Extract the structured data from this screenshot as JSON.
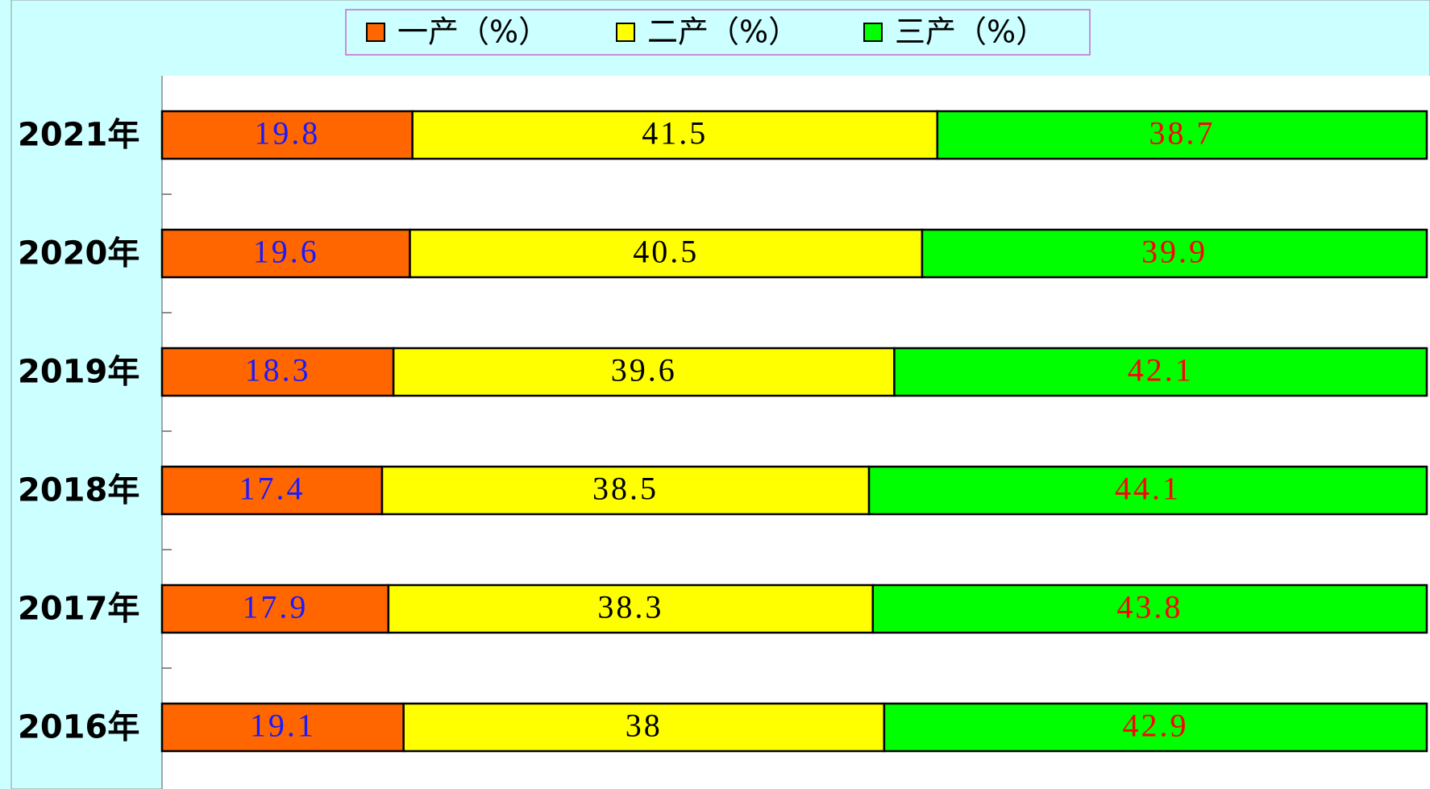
{
  "chart_data": {
    "type": "stacked-bar-horizontal",
    "categories": [
      "2021年",
      "2020年",
      "2019年",
      "2018年",
      "2017年",
      "2016年"
    ],
    "series": [
      {
        "name": "一产（%）",
        "color": "#ff6600",
        "label_color": "#1a1aff",
        "values": [
          19.8,
          19.6,
          18.3,
          17.4,
          17.9,
          19.1
        ]
      },
      {
        "name": "二产（%）",
        "color": "#ffff00",
        "label_color": "#000000",
        "values": [
          41.5,
          40.5,
          39.6,
          38.5,
          38.3,
          38
        ]
      },
      {
        "name": "三产（%）",
        "color": "#00ff00",
        "label_color": "#ff0000",
        "values": [
          38.7,
          39.9,
          42.1,
          44.1,
          43.8,
          42.9
        ]
      }
    ],
    "xlim": [
      0,
      100
    ],
    "legend": "top"
  }
}
